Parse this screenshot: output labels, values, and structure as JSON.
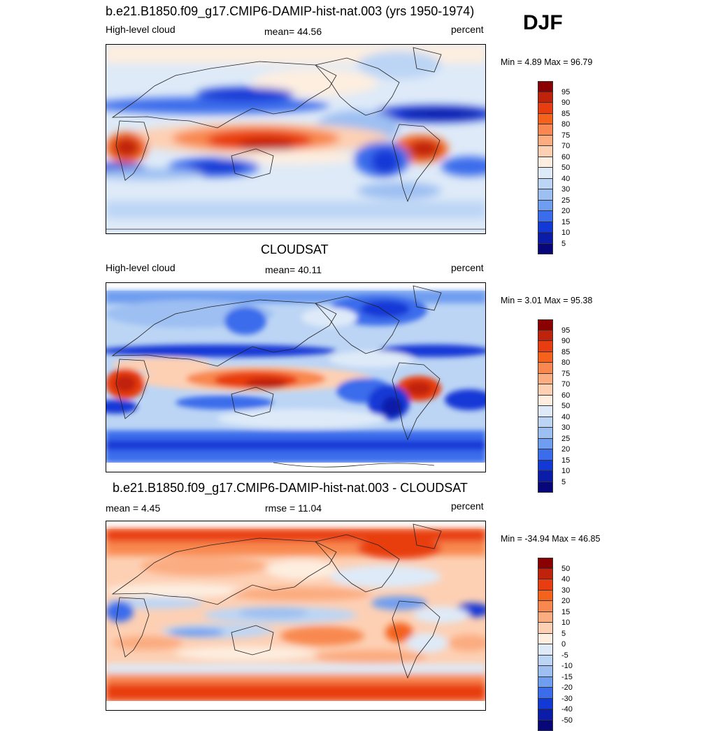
{
  "season": "DJF",
  "panels": [
    {
      "id": "model",
      "title": "b.e21.B1850.f09_g17.CMIP6-DAMIP-hist-nat.003 (yrs 1950-1974)",
      "left_label": "High-level cloud",
      "center_label": "mean=  44.56",
      "right_label": "percent",
      "minmax": "Min =   4.89 Max =  96.79",
      "colorbar": {
        "labels": [
          "95",
          "90",
          "85",
          "80",
          "75",
          "70",
          "60",
          "50",
          "40",
          "30",
          "25",
          "20",
          "15",
          "10",
          "5"
        ],
        "colors": [
          "#8b0000",
          "#c0230b",
          "#e83d10",
          "#f4621c",
          "#f88850",
          "#fbac80",
          "#fdd0b4",
          "#fdeee0",
          "#deeaf8",
          "#bcd5f5",
          "#9dbff2",
          "#6f9ef0",
          "#3a6ceb",
          "#1238d6",
          "#0a1ca8",
          "#07077a"
        ]
      }
    },
    {
      "id": "obs",
      "title": "CLOUDSAT",
      "left_label": "High-level cloud",
      "center_label": "mean=  40.11",
      "right_label": "percent",
      "minmax": "Min =   3.01 Max =  95.38",
      "colorbar": {
        "labels": [
          "95",
          "90",
          "85",
          "80",
          "75",
          "70",
          "60",
          "50",
          "40",
          "30",
          "25",
          "20",
          "15",
          "10",
          "5"
        ],
        "colors": [
          "#8b0000",
          "#c0230b",
          "#e83d10",
          "#f4621c",
          "#f88850",
          "#fbac80",
          "#fdd0b4",
          "#fdeee0",
          "#deeaf8",
          "#bcd5f5",
          "#9dbff2",
          "#6f9ef0",
          "#3a6ceb",
          "#1238d6",
          "#0a1ca8",
          "#07077a"
        ]
      }
    },
    {
      "id": "diff",
      "title": "b.e21.B1850.f09_g17.CMIP6-DAMIP-hist-nat.003 - CLOUDSAT",
      "left_label": "mean =   4.45",
      "center_label": "rmse =  11.04",
      "right_label": "percent",
      "minmax": "Min = -34.94 Max =  46.85",
      "colorbar": {
        "labels": [
          "50",
          "40",
          "30",
          "20",
          "15",
          "10",
          "5",
          "0",
          "-5",
          "-10",
          "-15",
          "-20",
          "-30",
          "-40",
          "-50"
        ],
        "colors": [
          "#8b0000",
          "#c0230b",
          "#e83d10",
          "#f4621c",
          "#f88850",
          "#fbac80",
          "#fdd0b4",
          "#fdeee0",
          "#deeaf8",
          "#bcd5f5",
          "#9dbff2",
          "#6f9ef0",
          "#3a6ceb",
          "#1238d6",
          "#0a1ca8",
          "#07077a"
        ]
      }
    }
  ]
}
